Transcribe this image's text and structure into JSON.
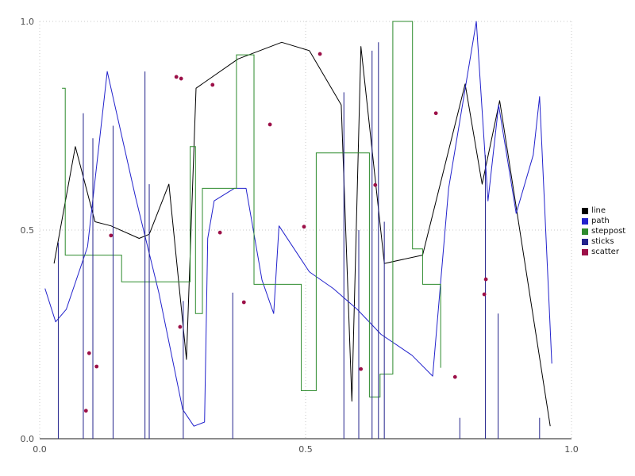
{
  "figure": {
    "background": "#ffffff"
  },
  "chart_data": {
    "type": "line",
    "title": "",
    "xlabel": "",
    "ylabel": "",
    "xlim": [
      0.0,
      1.0
    ],
    "ylim": [
      0.0,
      1.0
    ],
    "grid": true,
    "grid_style": "dotted",
    "grid_color": "#c9c9c9",
    "tick_color": "#4d4d4d",
    "axis_color": "#1a1a1a",
    "xticks": [
      {
        "value": 0.0,
        "label": "0.0"
      },
      {
        "value": 0.5,
        "label": "0.5"
      },
      {
        "value": 1.0,
        "label": "1.0"
      }
    ],
    "yticks": [
      {
        "value": 0.0,
        "label": "0.0"
      },
      {
        "value": 0.5,
        "label": "0.5"
      },
      {
        "value": 1.0,
        "label": "1.0"
      }
    ],
    "legend": {
      "position": "right-center",
      "entries": [
        {
          "label": "line",
          "color": "#000000"
        },
        {
          "label": "path",
          "color": "#2222cc"
        },
        {
          "label": "steppost",
          "color": "#2d8b2d"
        },
        {
          "label": "sticks",
          "color": "#24248c"
        },
        {
          "label": "scatter",
          "color": "#9c1048"
        }
      ]
    },
    "series": [
      {
        "name": "line",
        "type": "line",
        "color": "#000000",
        "points": [
          [
            0.027,
            0.42
          ],
          [
            0.067,
            0.7
          ],
          [
            0.104,
            0.52
          ],
          [
            0.134,
            0.51
          ],
          [
            0.187,
            0.48
          ],
          [
            0.206,
            0.49
          ],
          [
            0.243,
            0.61
          ],
          [
            0.276,
            0.19
          ],
          [
            0.294,
            0.84
          ],
          [
            0.373,
            0.91
          ],
          [
            0.455,
            0.95
          ],
          [
            0.507,
            0.93
          ],
          [
            0.567,
            0.8
          ],
          [
            0.587,
            0.09
          ],
          [
            0.604,
            0.94
          ],
          [
            0.648,
            0.42
          ],
          [
            0.72,
            0.44
          ],
          [
            0.8,
            0.85
          ],
          [
            0.832,
            0.61
          ],
          [
            0.865,
            0.81
          ],
          [
            0.96,
            0.03
          ]
        ]
      },
      {
        "name": "path",
        "type": "line",
        "color": "#2222cc",
        "points": [
          [
            0.01,
            0.36
          ],
          [
            0.03,
            0.28
          ],
          [
            0.05,
            0.31
          ],
          [
            0.09,
            0.46
          ],
          [
            0.127,
            0.88
          ],
          [
            0.18,
            0.58
          ],
          [
            0.224,
            0.35
          ],
          [
            0.269,
            0.07
          ],
          [
            0.29,
            0.03
          ],
          [
            0.31,
            0.04
          ],
          [
            0.316,
            0.48
          ],
          [
            0.328,
            0.57
          ],
          [
            0.366,
            0.6
          ],
          [
            0.388,
            0.6
          ],
          [
            0.418,
            0.38
          ],
          [
            0.44,
            0.3
          ],
          [
            0.45,
            0.51
          ],
          [
            0.507,
            0.4
          ],
          [
            0.552,
            0.36
          ],
          [
            0.597,
            0.31
          ],
          [
            0.642,
            0.25
          ],
          [
            0.7,
            0.2
          ],
          [
            0.739,
            0.15
          ],
          [
            0.769,
            0.6
          ],
          [
            0.821,
            1.0
          ],
          [
            0.843,
            0.57
          ],
          [
            0.863,
            0.8
          ],
          [
            0.896,
            0.54
          ],
          [
            0.928,
            0.68
          ],
          [
            0.94,
            0.82
          ],
          [
            0.963,
            0.18
          ]
        ]
      },
      {
        "name": "steppost",
        "type": "step-post",
        "color": "#2d8b2d",
        "points": [
          [
            0.042,
            0.84
          ],
          [
            0.048,
            0.44
          ],
          [
            0.154,
            0.376
          ],
          [
            0.283,
            0.7
          ],
          [
            0.293,
            0.3
          ],
          [
            0.306,
            0.6
          ],
          [
            0.37,
            0.92
          ],
          [
            0.403,
            0.37
          ],
          [
            0.492,
            0.115
          ],
          [
            0.52,
            0.685
          ],
          [
            0.62,
            0.1
          ],
          [
            0.64,
            0.155
          ],
          [
            0.664,
            1.0
          ],
          [
            0.701,
            0.455
          ],
          [
            0.72,
            0.37
          ],
          [
            0.754,
            0.17
          ]
        ]
      },
      {
        "name": "sticks",
        "type": "sticks",
        "color": "#24248c",
        "points": [
          [
            0.035,
            0.47
          ],
          [
            0.082,
            0.78
          ],
          [
            0.1,
            0.72
          ],
          [
            0.138,
            0.75
          ],
          [
            0.198,
            0.88
          ],
          [
            0.206,
            0.61
          ],
          [
            0.27,
            0.33
          ],
          [
            0.363,
            0.35
          ],
          [
            0.572,
            0.83
          ],
          [
            0.6,
            0.5
          ],
          [
            0.625,
            0.93
          ],
          [
            0.637,
            0.95
          ],
          [
            0.648,
            0.52
          ],
          [
            0.79,
            0.05
          ],
          [
            0.838,
            0.68
          ],
          [
            0.862,
            0.3
          ],
          [
            0.94,
            0.05
          ]
        ]
      },
      {
        "name": "scatter",
        "type": "scatter",
        "color": "#9c1048",
        "points": [
          [
            0.087,
            0.067
          ],
          [
            0.093,
            0.205
          ],
          [
            0.107,
            0.173
          ],
          [
            0.134,
            0.487
          ],
          [
            0.257,
            0.867
          ],
          [
            0.266,
            0.863
          ],
          [
            0.264,
            0.268
          ],
          [
            0.325,
            0.848
          ],
          [
            0.339,
            0.494
          ],
          [
            0.384,
            0.327
          ],
          [
            0.433,
            0.753
          ],
          [
            0.497,
            0.508
          ],
          [
            0.527,
            0.922
          ],
          [
            0.604,
            0.167
          ],
          [
            0.631,
            0.608
          ],
          [
            0.745,
            0.78
          ],
          [
            0.781,
            0.148
          ],
          [
            0.839,
            0.382
          ],
          [
            0.836,
            0.346
          ]
        ]
      }
    ]
  }
}
